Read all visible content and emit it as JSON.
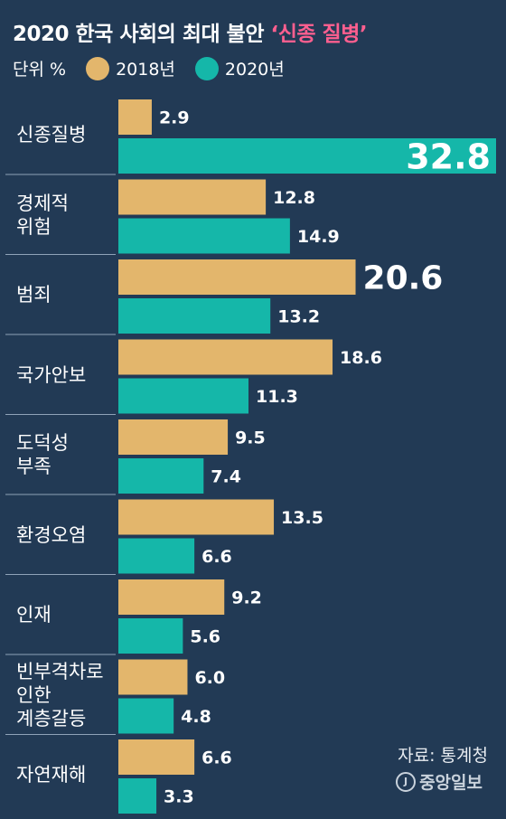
{
  "title": {
    "main": "2020 한국 사회의 최대 불안 ",
    "highlight": "‘신종 질병’"
  },
  "legend": {
    "unit": "단위 %",
    "items": [
      {
        "label": "2018년",
        "color": "#e3b66c"
      },
      {
        "label": "2020년",
        "color": "#15b7a9"
      }
    ]
  },
  "source": "자료: 통계청",
  "publisher": "중앙일보",
  "publisher_mark": "J",
  "colors": {
    "background": "#223a55",
    "bar2018": "#e3b66c",
    "bar2020": "#15b7a9",
    "separator": "#8fa3b8"
  },
  "chart_data": {
    "type": "bar",
    "orientation": "horizontal",
    "categories": [
      "신종질병",
      "경제적\n위험",
      "범죄",
      "국가안보",
      "도덕성\n부족",
      "환경오염",
      "인재",
      "빈부격차로\n인한\n계층갈등",
      "자연재해"
    ],
    "series": [
      {
        "name": "2018년",
        "values": [
          2.9,
          12.8,
          20.6,
          18.6,
          9.5,
          13.5,
          9.2,
          6.0,
          6.6
        ]
      },
      {
        "name": "2020년",
        "values": [
          32.8,
          14.9,
          13.2,
          11.3,
          7.4,
          6.6,
          5.6,
          4.8,
          3.3
        ]
      }
    ],
    "value_labels": [
      [
        "2.9",
        "12.8",
        "20.6",
        "18.6",
        "9.5",
        "13.5",
        "9.2",
        "6.0",
        "6.6"
      ],
      [
        "32.8",
        "14.9",
        "13.2",
        "11.3",
        "7.4",
        "6.6",
        "5.6",
        "4.8",
        "3.3"
      ]
    ],
    "highlighted_labels": [
      "2020년:0",
      "2018년:2"
    ],
    "unit": "%",
    "xlim": [
      0,
      32.8
    ]
  }
}
